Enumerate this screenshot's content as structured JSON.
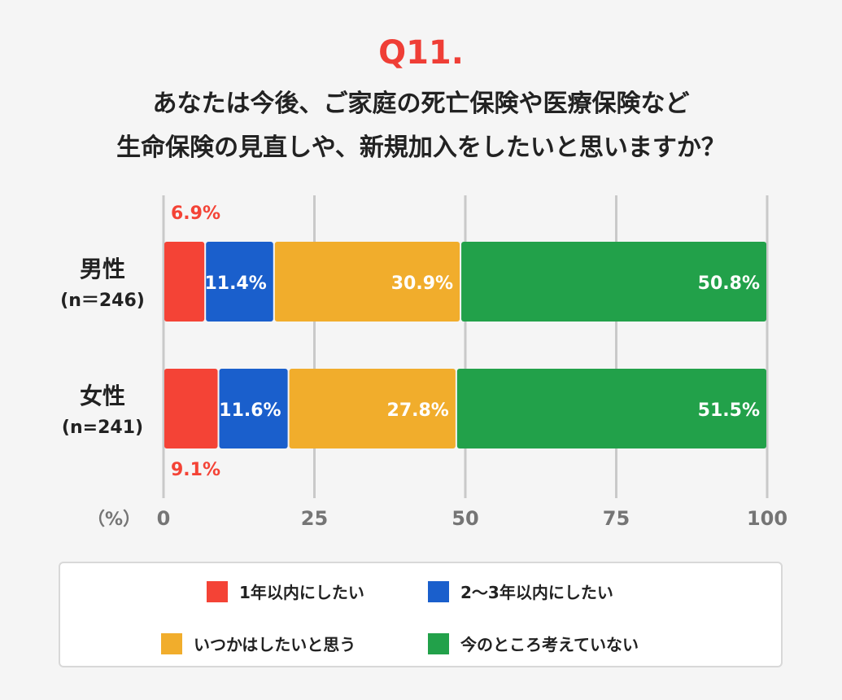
{
  "question": {
    "number": "Q11.",
    "line1": "あなたは今後、ご家庭の死亡保険や医療保険など",
    "line2": "生命保険の見直しや、新規加入をしたいと思いますか？"
  },
  "colors": {
    "c1": "#f44336",
    "c2": "#1a5fcc",
    "c3": "#f1ad2c",
    "c4": "#22a14a"
  },
  "chart_data": {
    "type": "bar",
    "orientation": "horizontal",
    "stacked": true,
    "unit_label": "（%）",
    "xlim": [
      0,
      100
    ],
    "x_ticks": [
      "0",
      "25",
      "50",
      "75",
      "100"
    ],
    "grid": true,
    "legend_position": "bottom",
    "categories": [
      {
        "label": "男性",
        "sublabel": "(n＝246)"
      },
      {
        "label": "女性",
        "sublabel": "(n=241)"
      }
    ],
    "series": [
      {
        "name": "1年以内にしたい",
        "values": [
          6.9,
          9.1
        ],
        "labels": [
          "6.9%",
          "9.1%"
        ]
      },
      {
        "name": "2〜3年以内にしたい",
        "values": [
          11.4,
          11.6
        ],
        "labels": [
          "11.4%",
          "11.6%"
        ]
      },
      {
        "name": "いつかはしたいと思う",
        "values": [
          30.9,
          27.8
        ],
        "labels": [
          "30.9%",
          "27.8%"
        ]
      },
      {
        "name": "今のところ考えていない",
        "values": [
          50.8,
          51.5
        ],
        "labels": [
          "50.8%",
          "51.5%"
        ]
      }
    ]
  }
}
